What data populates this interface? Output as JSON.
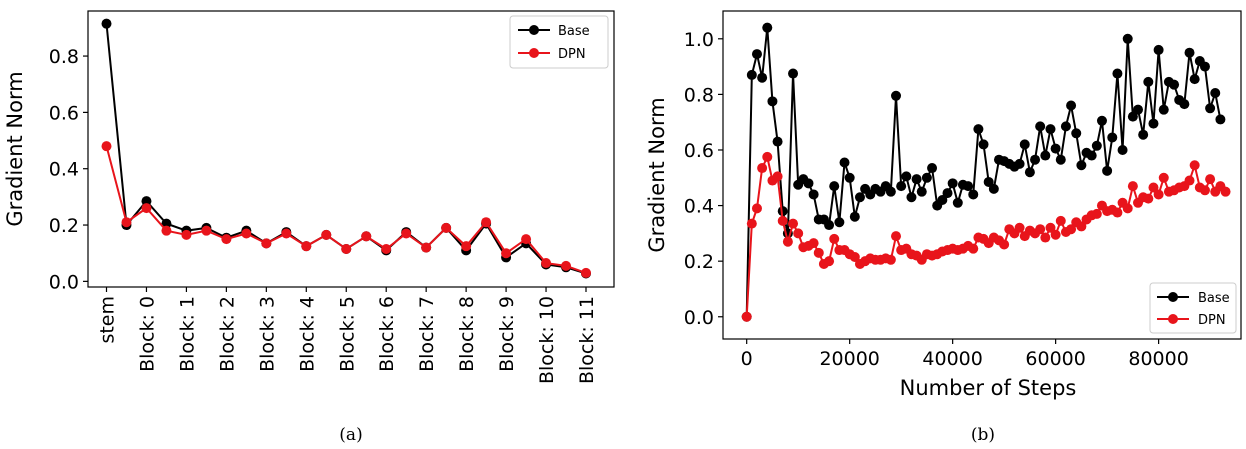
{
  "colors": {
    "base": "#000000",
    "dpn": "#e8141b"
  },
  "chart_data": [
    {
      "type": "line",
      "caption": "(a)",
      "ylabel": "Gradient Norm",
      "xlabel": "",
      "ylim": [
        -0.02,
        0.96
      ],
      "yticks": [
        0.0,
        0.2,
        0.4,
        0.6,
        0.8
      ],
      "ytick_labels": [
        "0.0",
        "0.2",
        "0.4",
        "0.6",
        "0.8"
      ],
      "xtick_labels": [
        "stem",
        "Block: 0",
        "Block: 1",
        "Block: 2",
        "Block: 3",
        "Block: 4",
        "Block: 5",
        "Block: 6",
        "Block: 7",
        "Block: 8",
        "Block: 9",
        "Block: 10",
        "Block: 11"
      ],
      "legend": {
        "position": "top-right",
        "entries": [
          "Base",
          "DPN"
        ]
      },
      "series": [
        {
          "name": "Base",
          "color_key": "base",
          "values": [
            0.915,
            0.2,
            0.285,
            0.205,
            0.18,
            0.19,
            0.155,
            0.18,
            0.135,
            0.175,
            0.125,
            0.165,
            0.115,
            0.16,
            0.11,
            0.175,
            0.12,
            0.19,
            0.11,
            0.205,
            0.085,
            0.135,
            0.06,
            0.05,
            0.028
          ]
        },
        {
          "name": "DPN",
          "color_key": "dpn",
          "values": [
            0.48,
            0.21,
            0.26,
            0.18,
            0.165,
            0.18,
            0.15,
            0.17,
            0.135,
            0.17,
            0.125,
            0.165,
            0.115,
            0.16,
            0.115,
            0.17,
            0.12,
            0.19,
            0.125,
            0.21,
            0.1,
            0.15,
            0.065,
            0.055,
            0.03
          ]
        }
      ]
    },
    {
      "type": "line",
      "caption": "(b)",
      "ylabel": "Gradient Norm",
      "xlabel": "Number of Steps",
      "xlim": [
        -4600,
        96000
      ],
      "ylim": [
        -0.08,
        1.1
      ],
      "xticks": [
        0,
        20000,
        40000,
        60000,
        80000
      ],
      "xtick_labels": [
        "0",
        "20000",
        "40000",
        "60000",
        "80000"
      ],
      "yticks": [
        0.0,
        0.2,
        0.4,
        0.6,
        0.8,
        1.0
      ],
      "ytick_labels": [
        "0.0",
        "0.2",
        "0.4",
        "0.6",
        "0.8",
        "1.0"
      ],
      "legend": {
        "position": "bottom-right",
        "entries": [
          "Base",
          "DPN"
        ]
      },
      "x_start": 0,
      "x_step": 1000,
      "series": [
        {
          "name": "Base",
          "color_key": "base",
          "values": [
            0.0,
            0.87,
            0.945,
            0.86,
            1.04,
            0.775,
            0.63,
            0.38,
            0.3,
            0.875,
            0.475,
            0.495,
            0.48,
            0.44,
            0.35,
            0.35,
            0.33,
            0.47,
            0.34,
            0.555,
            0.5,
            0.36,
            0.43,
            0.46,
            0.44,
            0.46,
            0.45,
            0.47,
            0.45,
            0.795,
            0.47,
            0.505,
            0.43,
            0.495,
            0.45,
            0.5,
            0.535,
            0.4,
            0.42,
            0.445,
            0.48,
            0.41,
            0.475,
            0.47,
            0.44,
            0.675,
            0.62,
            0.485,
            0.46,
            0.565,
            0.56,
            0.55,
            0.54,
            0.55,
            0.62,
            0.52,
            0.565,
            0.685,
            0.58,
            0.675,
            0.605,
            0.565,
            0.685,
            0.76,
            0.66,
            0.545,
            0.59,
            0.58,
            0.615,
            0.705,
            0.525,
            0.645,
            0.875,
            0.6,
            1.0,
            0.72,
            0.745,
            0.655,
            0.845,
            0.695,
            0.96,
            0.745,
            0.845,
            0.835,
            0.78,
            0.765,
            0.95,
            0.855,
            0.92,
            0.9,
            0.75,
            0.805,
            0.71
          ]
        },
        {
          "name": "DPN",
          "color_key": "dpn",
          "values": [
            0.0,
            0.335,
            0.39,
            0.535,
            0.575,
            0.49,
            0.505,
            0.345,
            0.27,
            0.335,
            0.3,
            0.25,
            0.255,
            0.265,
            0.23,
            0.19,
            0.2,
            0.28,
            0.24,
            0.24,
            0.225,
            0.215,
            0.19,
            0.2,
            0.21,
            0.205,
            0.205,
            0.21,
            0.205,
            0.29,
            0.24,
            0.245,
            0.225,
            0.22,
            0.205,
            0.225,
            0.22,
            0.225,
            0.235,
            0.24,
            0.245,
            0.24,
            0.245,
            0.255,
            0.245,
            0.285,
            0.28,
            0.265,
            0.285,
            0.275,
            0.26,
            0.315,
            0.3,
            0.32,
            0.29,
            0.31,
            0.3,
            0.315,
            0.285,
            0.32,
            0.295,
            0.345,
            0.305,
            0.315,
            0.34,
            0.325,
            0.35,
            0.365,
            0.37,
            0.4,
            0.38,
            0.385,
            0.375,
            0.41,
            0.39,
            0.47,
            0.41,
            0.43,
            0.425,
            0.465,
            0.44,
            0.5,
            0.45,
            0.455,
            0.465,
            0.47,
            0.49,
            0.545,
            0.465,
            0.455,
            0.495,
            0.45,
            0.47,
            0.45
          ]
        }
      ]
    }
  ]
}
